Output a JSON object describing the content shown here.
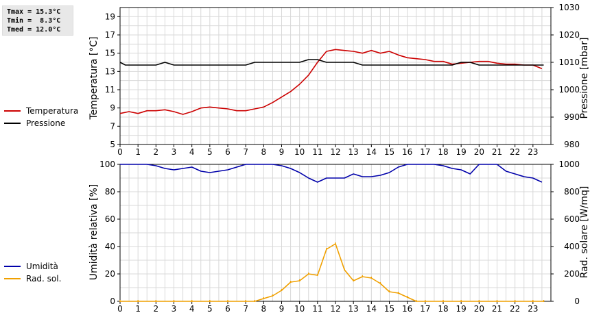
{
  "stats": {
    "tmax": "Tmax = 15.3°C",
    "tmin": "Tmin =  8.3°C",
    "tmed": "Tmed = 12.0°C"
  },
  "colors": {
    "temperatura": "#cc0000",
    "pressione": "#000000",
    "umidita": "#0000aa",
    "rad_sol": "#f0a000",
    "grid": "#d8d8d8"
  },
  "legend_top": [
    {
      "label": "Temperatura",
      "color": "#cc0000"
    },
    {
      "label": "Pressione",
      "color": "#000000"
    }
  ],
  "legend_bottom": [
    {
      "label": "Umidità",
      "color": "#0000aa"
    },
    {
      "label": "Rad. sol.",
      "color": "#f0a000"
    }
  ],
  "chart_data": [
    {
      "type": "line",
      "ylabel": "Temperatura [°C]",
      "y2label": "Pressione [mbar]",
      "xlim": [
        0,
        24
      ],
      "ylim": [
        5,
        20
      ],
      "y2lim": [
        980,
        1030
      ],
      "yticks": [
        5,
        7,
        9,
        11,
        13,
        15,
        17,
        19
      ],
      "y2ticks": [
        980,
        990,
        1000,
        1010,
        1020,
        1030
      ],
      "xticks": [
        0,
        1,
        2,
        3,
        4,
        5,
        6,
        7,
        8,
        9,
        10,
        11,
        12,
        13,
        14,
        15,
        16,
        17,
        18,
        19,
        20,
        21,
        22,
        23
      ],
      "grid": true,
      "series": [
        {
          "name": "Temperatura",
          "axis": "left",
          "x": [
            0,
            0.5,
            1,
            1.5,
            2,
            2.5,
            3,
            3.5,
            4,
            4.5,
            5,
            5.5,
            6,
            6.5,
            7,
            7.5,
            8,
            8.5,
            9,
            9.5,
            10,
            10.5,
            11,
            11.5,
            12,
            12.5,
            13,
            13.5,
            14,
            14.5,
            15,
            15.5,
            16,
            16.5,
            17,
            17.5,
            18,
            18.5,
            19,
            19.5,
            20,
            20.5,
            21,
            21.5,
            22,
            22.5,
            23,
            23.5
          ],
          "y": [
            8.4,
            8.6,
            8.4,
            8.7,
            8.7,
            8.8,
            8.6,
            8.3,
            8.6,
            9.0,
            9.1,
            9.0,
            8.9,
            8.7,
            8.7,
            8.9,
            9.1,
            9.6,
            10.2,
            10.8,
            11.6,
            12.6,
            14.0,
            15.2,
            15.4,
            15.3,
            15.2,
            15.0,
            15.3,
            15.0,
            15.2,
            14.8,
            14.5,
            14.4,
            14.3,
            14.1,
            14.1,
            13.8,
            13.9,
            14.0,
            14.1,
            14.1,
            13.9,
            13.8,
            13.8,
            13.7,
            13.7,
            13.3
          ]
        },
        {
          "name": "Pressione",
          "axis": "right",
          "x": [
            0,
            0.3,
            1.5,
            2,
            2.5,
            3,
            4,
            5,
            6,
            7,
            7.5,
            8,
            9,
            10,
            10.5,
            11,
            11.5,
            12,
            13,
            13.5,
            14,
            15,
            16,
            17,
            18,
            18.5,
            19,
            19.5,
            20,
            21,
            22,
            23,
            23.6
          ],
          "y": [
            1010,
            1009,
            1009,
            1009,
            1010,
            1009,
            1009,
            1009,
            1009,
            1009,
            1010,
            1010,
            1010,
            1010,
            1011,
            1011,
            1010,
            1010,
            1010,
            1009,
            1009,
            1009,
            1009,
            1009,
            1009,
            1009,
            1010,
            1010,
            1009,
            1009,
            1009,
            1009,
            1009
          ]
        }
      ]
    },
    {
      "type": "line",
      "ylabel": "Umidità relativa [%]",
      "y2label": "Rad. solare [W/mq]",
      "xlim": [
        0,
        24
      ],
      "ylim": [
        0,
        100
      ],
      "y2lim": [
        0,
        1000
      ],
      "yticks": [
        0,
        20,
        40,
        60,
        80,
        100
      ],
      "y2ticks": [
        0,
        200,
        400,
        600,
        800,
        1000
      ],
      "xticks": [
        0,
        1,
        2,
        3,
        4,
        5,
        6,
        7,
        8,
        9,
        10,
        11,
        12,
        13,
        14,
        15,
        16,
        17,
        18,
        19,
        20,
        21,
        22,
        23
      ],
      "grid": true,
      "series": [
        {
          "name": "Umidità",
          "axis": "left",
          "x": [
            0,
            0.5,
            1,
            1.5,
            2,
            2.5,
            3,
            3.5,
            4,
            4.5,
            5,
            5.5,
            6,
            6.5,
            7,
            7.5,
            8,
            8.5,
            9,
            9.5,
            10,
            10.5,
            11,
            11.5,
            12,
            12.5,
            13,
            13.5,
            14,
            14.5,
            15,
            15.5,
            16,
            16.5,
            17,
            17.5,
            18,
            18.5,
            19,
            19.5,
            20,
            20.5,
            21,
            21.5,
            22,
            22.5,
            23,
            23.5
          ],
          "y": [
            100,
            100,
            100,
            100,
            99,
            97,
            96,
            97,
            98,
            95,
            94,
            95,
            96,
            98,
            100,
            100,
            100,
            100,
            99,
            97,
            94,
            90,
            87,
            90,
            90,
            90,
            93,
            91,
            91,
            92,
            94,
            98,
            100,
            100,
            100,
            100,
            99,
            97,
            96,
            93,
            100,
            100,
            100,
            95,
            93,
            91,
            90,
            87
          ]
        },
        {
          "name": "Rad. sol.",
          "axis": "right",
          "x": [
            0,
            1,
            2,
            3,
            4,
            5,
            6,
            7,
            7.5,
            8,
            8.5,
            9,
            9.5,
            10,
            10.5,
            11,
            11.5,
            12,
            12.5,
            13,
            13.5,
            14,
            14.5,
            15,
            15.5,
            16,
            16.5,
            17,
            18,
            19,
            20,
            21,
            22,
            23,
            23.6
          ],
          "y": [
            0,
            0,
            0,
            0,
            0,
            0,
            0,
            0,
            0,
            20,
            40,
            80,
            140,
            150,
            200,
            190,
            380,
            420,
            230,
            150,
            180,
            170,
            130,
            70,
            60,
            30,
            0,
            0,
            0,
            0,
            0,
            0,
            0,
            0,
            0
          ],
          "markers": true
        }
      ]
    }
  ]
}
